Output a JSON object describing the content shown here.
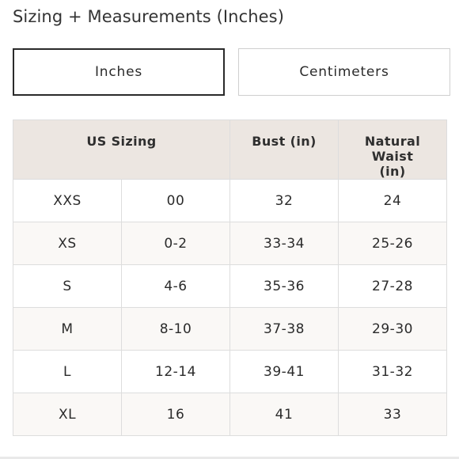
{
  "title": "Sizing + Measurements (Inches)",
  "unit_toggle": {
    "inches_label": "Inches",
    "centimeters_label": "Centimeters",
    "selected": "Inches"
  },
  "table": {
    "headers": {
      "us_sizing": "US Sizing",
      "bust": "Bust (in)",
      "waist": "Natural Waist (in)"
    },
    "rows": [
      {
        "size": "XXS",
        "numeric": "00",
        "bust": "32",
        "waist": "24"
      },
      {
        "size": "XS",
        "numeric": "0-2",
        "bust": "33-34",
        "waist": "25-26"
      },
      {
        "size": "S",
        "numeric": "4-6",
        "bust": "35-36",
        "waist": "27-28"
      },
      {
        "size": "M",
        "numeric": "8-10",
        "bust": "37-38",
        "waist": "29-30"
      },
      {
        "size": "L",
        "numeric": "12-14",
        "bust": "39-41",
        "waist": "31-32"
      },
      {
        "size": "XL",
        "numeric": "16",
        "bust": "41",
        "waist": "33"
      }
    ]
  },
  "colors": {
    "header_background": "#ece6e1",
    "alt_row_background": "#faf8f6",
    "border": "#dddddd",
    "active_toggle_border": "#2a2a2a"
  }
}
